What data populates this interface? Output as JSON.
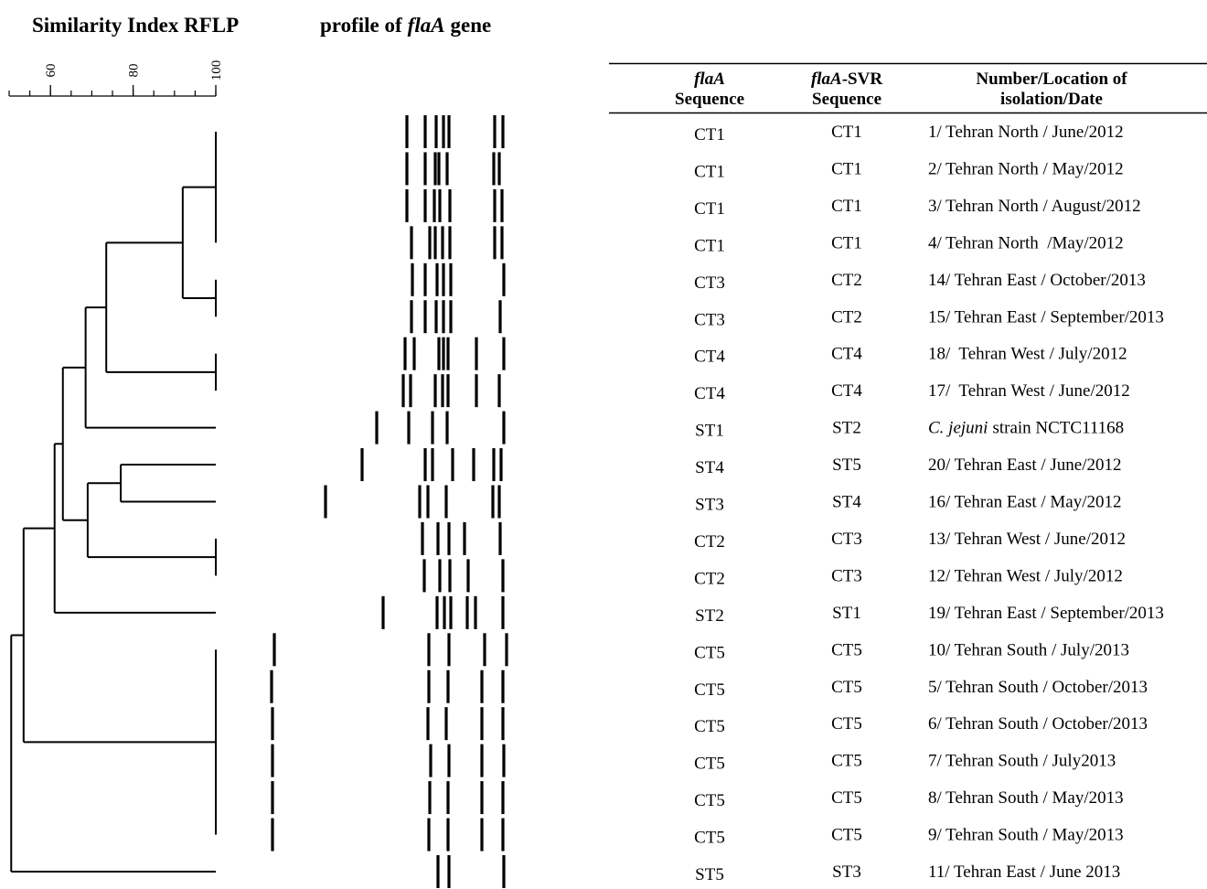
{
  "title": {
    "left": "Similarity Index RFLP",
    "right": [
      "profile of",
      "flaA",
      "gene"
    ]
  },
  "axis": {
    "xlim": [
      50,
      100
    ],
    "ticks": [
      60,
      80,
      100
    ],
    "minor_ticks": [
      50,
      55,
      60,
      65,
      70,
      75,
      80,
      85,
      90,
      95,
      100
    ]
  },
  "dendrogram": {
    "similarity": 50.5,
    "children": [
      {
        "similarity": 53.5,
        "children": [
          {
            "similarity": 61,
            "children": [
              {
                "similarity": 63,
                "children": [
                  {
                    "similarity": 68.5,
                    "children": [
                      {
                        "similarity": 73.5,
                        "children": [
                          {
                            "similarity": 92,
                            "children": [
                              {
                                "similarity": 100,
                                "children": [
                                  {},
                                  {},
                                  {},
                                  {}
                                ]
                              },
                              {
                                "similarity": 100,
                                "children": [
                                  {},
                                  {}
                                ]
                              }
                            ]
                          },
                          {
                            "similarity": 100,
                            "children": [
                              {},
                              {}
                            ]
                          }
                        ]
                      },
                      {}
                    ]
                  },
                  {
                    "similarity": 69,
                    "children": [
                      {
                        "similarity": 77,
                        "children": [
                          {},
                          {}
                        ]
                      },
                      {
                        "similarity": 100,
                        "children": [
                          {},
                          {}
                        ]
                      }
                    ]
                  }
                ]
              },
              {}
            ]
          },
          {
            "similarity": 100,
            "children": [
              {},
              {},
              {},
              {},
              {},
              {}
            ]
          }
        ]
      },
      {}
    ]
  },
  "table": {
    "header": [
      {
        "italic": "flaA",
        "text": "",
        "line2": "Sequence"
      },
      {
        "italic": "flaA",
        "text": "-SVR",
        "line2": "Sequence"
      },
      {
        "italic": "",
        "text": "Number/Location of",
        "line2": "isolation/Date"
      }
    ],
    "rows": [
      [
        "CT1",
        "CT1",
        "1/ Tehran North / June/2012"
      ],
      [
        "CT1",
        "CT1",
        "2/ Tehran North / May/2012"
      ],
      [
        "CT1",
        "CT1",
        "3/ Tehran North / August/2012"
      ],
      [
        "CT1",
        "CT1",
        "4/ Tehran North  /May/2012"
      ],
      [
        "CT3",
        "CT2",
        "14/ Tehran East / October/2013"
      ],
      [
        "CT3",
        "CT2",
        "15/ Tehran East / September/2013"
      ],
      [
        "CT4",
        "CT4",
        "18/  Tehran West / July/2012"
      ],
      [
        "CT4",
        "CT4",
        "17/  Tehran West / June/2012"
      ],
      [
        "ST1",
        "ST2",
        {
          "italic": "C. jejuni",
          "text": "strain NCTC11168"
        }
      ],
      [
        "ST4",
        "ST5",
        "20/ Tehran East / June/2012"
      ],
      [
        "ST3",
        "ST4",
        "16/ Tehran East / May/2012"
      ],
      [
        "CT2",
        "CT3",
        "13/ Tehran West / June/2012"
      ],
      [
        "CT2",
        "CT3",
        "12/ Tehran West / July/2012"
      ],
      [
        "ST2",
        "ST1",
        "19/ Tehran East / September/2013"
      ],
      [
        "CT5",
        "CT5",
        "10/ Tehran South / July/2013"
      ],
      [
        "CT5",
        "CT5",
        "5/ Tehran South / October/2013"
      ],
      [
        "CT5",
        "CT5",
        "6/ Tehran South / October/2013"
      ],
      [
        "CT5",
        "CT5",
        "7/ Tehran South / July2013"
      ],
      [
        "CT5",
        "CT5",
        "8/ Tehran South / May/2013"
      ],
      [
        "CT5",
        "CT5",
        "9/ Tehran South / May/2013"
      ],
      [
        "ST5",
        "ST3",
        "11/ Tehran East / June 2013"
      ]
    ]
  }
}
